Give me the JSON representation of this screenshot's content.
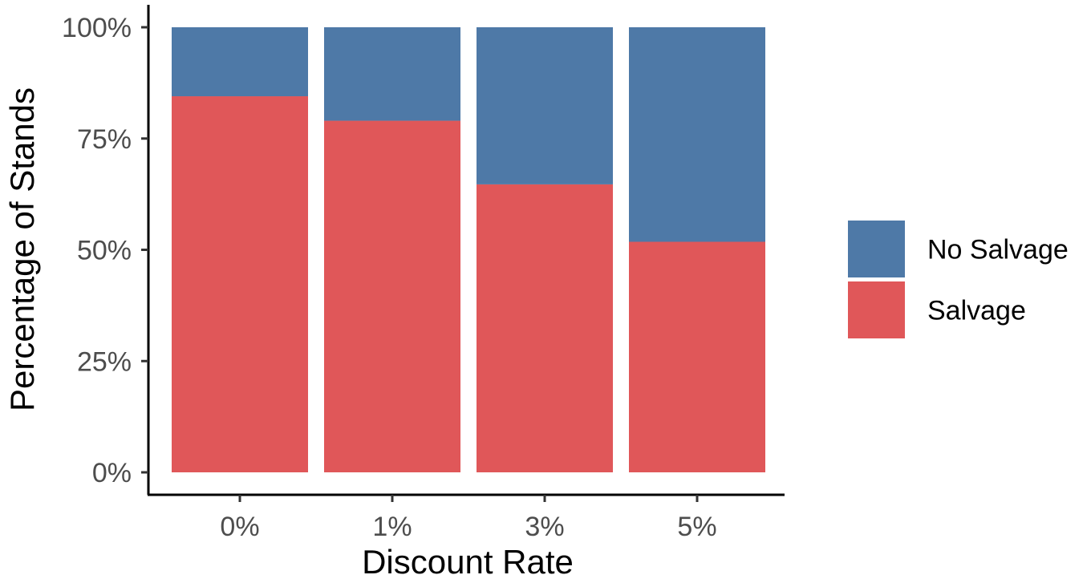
{
  "chart_data": {
    "type": "bar",
    "stacked": true,
    "categories": [
      "0%",
      "1%",
      "3%",
      "5%"
    ],
    "series": [
      {
        "name": "Salvage",
        "values": [
          84.5,
          79,
          64.7,
          51.8
        ],
        "color": "#e05759"
      },
      {
        "name": "No Salvage",
        "values": [
          15.5,
          21,
          35.3,
          48.2
        ],
        "color": "#4e79a7"
      }
    ],
    "xlabel": "Discount Rate",
    "ylabel": "Percentage of Stands",
    "ylim": [
      0,
      100
    ],
    "yticks": [
      {
        "value": 0,
        "label": "0%"
      },
      {
        "value": 25,
        "label": "25%"
      },
      {
        "value": 50,
        "label": "50%"
      },
      {
        "value": 75,
        "label": "75%"
      },
      {
        "value": 100,
        "label": "100%"
      }
    ],
    "legend": {
      "placement": "right",
      "entries": [
        {
          "label": "No Salvage",
          "color": "#4e79a7"
        },
        {
          "label": "Salvage",
          "color": "#e05759"
        }
      ]
    },
    "grid": false
  }
}
